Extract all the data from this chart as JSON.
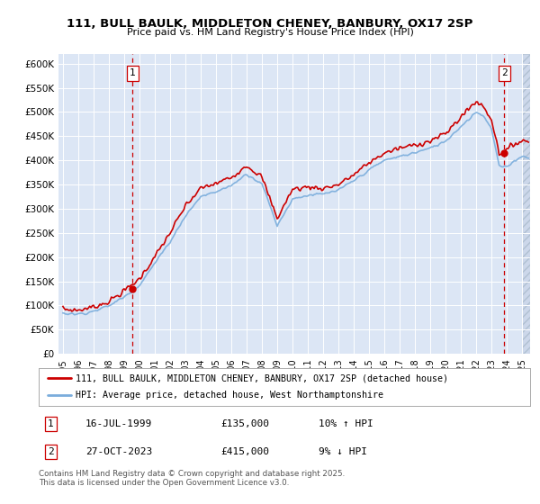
{
  "title": "111, BULL BAULK, MIDDLETON CHENEY, BANBURY, OX17 2SP",
  "subtitle": "Price paid vs. HM Land Registry's House Price Index (HPI)",
  "ylim": [
    0,
    620000
  ],
  "yticks": [
    0,
    50000,
    100000,
    150000,
    200000,
    250000,
    300000,
    350000,
    400000,
    450000,
    500000,
    550000,
    600000
  ],
  "ytick_labels": [
    "£0",
    "£50K",
    "£100K",
    "£150K",
    "£200K",
    "£250K",
    "£300K",
    "£350K",
    "£400K",
    "£450K",
    "£500K",
    "£550K",
    "£600K"
  ],
  "xlim_start": 1994.7,
  "xlim_end": 2025.5,
  "xtick_years": [
    1995,
    1996,
    1997,
    1998,
    1999,
    2000,
    2001,
    2002,
    2003,
    2004,
    2005,
    2006,
    2007,
    2008,
    2009,
    2010,
    2011,
    2012,
    2013,
    2014,
    2015,
    2016,
    2017,
    2018,
    2019,
    2020,
    2021,
    2022,
    2023,
    2024,
    2025
  ],
  "bg_color": "#dce6f5",
  "grid_color": "#ffffff",
  "red_line_color": "#cc0000",
  "blue_line_color": "#7aaddc",
  "marker1_x": 1999.54,
  "marker1_y": 135000,
  "marker2_x": 2023.82,
  "marker2_y": 415000,
  "legend_label1": "111, BULL BAULK, MIDDLETON CHENEY, BANBURY, OX17 2SP (detached house)",
  "legend_label2": "HPI: Average price, detached house, West Northamptonshire",
  "ann1_num": "1",
  "ann1_date": "16-JUL-1999",
  "ann1_price": "£135,000",
  "ann1_hpi": "10% ↑ HPI",
  "ann2_num": "2",
  "ann2_date": "27-OCT-2023",
  "ann2_price": "£415,000",
  "ann2_hpi": "9% ↓ HPI",
  "copyright_text": "Contains HM Land Registry data © Crown copyright and database right 2025.\nThis data is licensed under the Open Government Licence v3.0."
}
